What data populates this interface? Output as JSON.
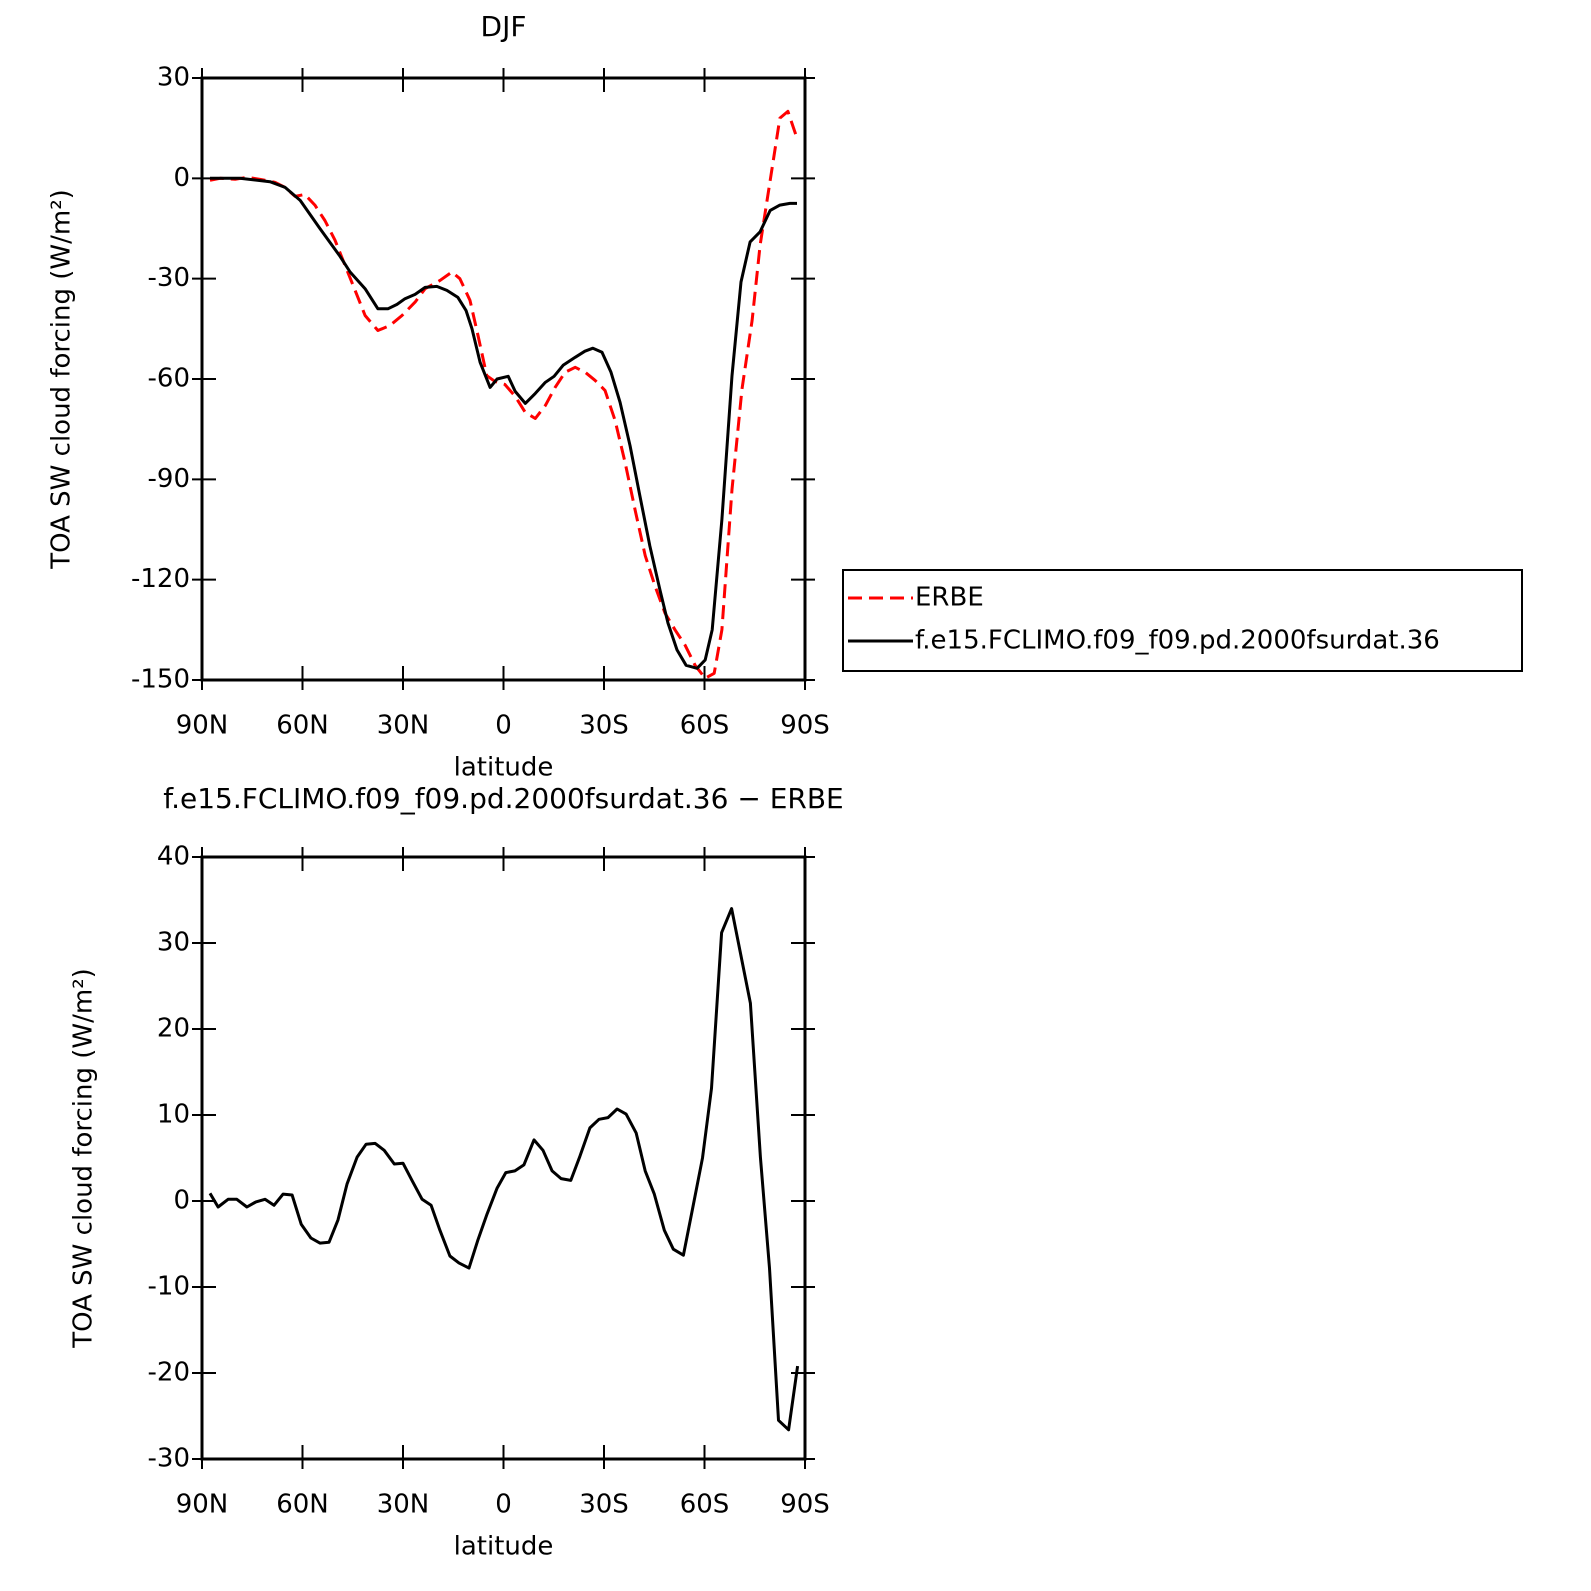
{
  "chart_data": [
    {
      "type": "line",
      "title": "DJF",
      "xlabel": "latitude",
      "ylabel": "TOA SW cloud forcing (W/m²)",
      "xlim": [
        90,
        -90
      ],
      "xticks": [
        {
          "value": 90,
          "label": "90N"
        },
        {
          "value": 60,
          "label": "60N"
        },
        {
          "value": 30,
          "label": "30N"
        },
        0,
        {
          "value": -30,
          "label": "30S"
        },
        {
          "value": -60,
          "label": "60S"
        },
        {
          "value": -90,
          "label": "90S"
        }
      ],
      "ylim": [
        -150,
        30
      ],
      "yticks": [
        30,
        0,
        -30,
        -60,
        -90,
        -120,
        -150
      ],
      "legend": "right",
      "series": [
        {
          "name": "ERBE",
          "color": "#ff0000",
          "style": "dashed",
          "x": [
            87.6,
            84.6,
            80.1,
            76.6,
            72.7,
            68.2,
            65.2,
            62.2,
            59.3,
            56.3,
            53.3,
            50.3,
            47.3,
            44.3,
            41.3,
            37.5,
            33.9,
            30.3,
            26.4,
            23.4,
            18.9,
            15.4,
            13,
            10,
            7.6,
            5,
            2.6,
            -0.4,
            -3.5,
            -6.5,
            -9.5,
            -12.5,
            -15.4,
            -18.4,
            -21.4,
            -24.4,
            -27.3,
            -30.3,
            -33.3,
            -36.3,
            -39.3,
            -42.3,
            -45.2,
            -48.2,
            -51.2,
            -54.2,
            -57.2,
            -60.2,
            -62.9,
            -65.2,
            -68.2,
            -71.2,
            -74.2,
            -76.6,
            -79.6,
            -82.5,
            -84.9,
            -87.6
          ],
          "values": [
            -0.6,
            0,
            -0.3,
            0.3,
            -0.3,
            -1.2,
            -2.7,
            -5.4,
            -4.8,
            -8,
            -12.6,
            -18.5,
            -26,
            -33.5,
            -41,
            -45.5,
            -44,
            -41,
            -37,
            -33,
            -30.5,
            -28,
            -30,
            -36.5,
            -47,
            -59,
            -60.7,
            -61.6,
            -65.2,
            -70,
            -71.8,
            -67.9,
            -62.5,
            -58,
            -56.5,
            -58,
            -60.4,
            -63.4,
            -72.4,
            -85,
            -99.3,
            -112.8,
            -121.8,
            -130,
            -135,
            -139.6,
            -145.6,
            -149.5,
            -148,
            -135,
            -93,
            -63,
            -42.5,
            -20,
            -0.6,
            18,
            20,
            12
          ]
        },
        {
          "name": "f.e15.FCLIMO.f09_f09.pd.2000fsurdat.36",
          "color": "#000000",
          "style": "solid",
          "x": [
            87.6,
            78.7,
            69.7,
            65.2,
            60.7,
            54.8,
            48.8,
            45.8,
            41.3,
            37.5,
            34.5,
            31.8,
            29.4,
            26.4,
            23.4,
            19.9,
            16.9,
            13.6,
            11.2,
            9.4,
            7,
            4,
            1.9,
            -1.4,
            -3.5,
            -6.5,
            -9.5,
            -12.5,
            -15.1,
            -17.8,
            -21.4,
            -24.3,
            -26.7,
            -29.4,
            -32.1,
            -34.8,
            -37.8,
            -40.7,
            -43.7,
            -46.7,
            -49.1,
            -51.8,
            -54.5,
            -57.8,
            -60.2,
            -62.3,
            -65.2,
            -68.2,
            -70.9,
            -73.6,
            -76.6,
            -79.6,
            -82.5,
            -85.5,
            -87.6
          ],
          "values": [
            0,
            0,
            -1,
            -2.7,
            -6.6,
            -15,
            -23.3,
            -28,
            -33,
            -39,
            -39,
            -37.7,
            -36,
            -34.7,
            -32.6,
            -32.3,
            -33.5,
            -35.6,
            -39.5,
            -45,
            -55,
            -62.5,
            -60,
            -59.2,
            -63.7,
            -67.3,
            -64.3,
            -61,
            -59.2,
            -55.9,
            -53.5,
            -51.7,
            -50.8,
            -52,
            -58,
            -67,
            -80,
            -94.8,
            -110,
            -123,
            -133,
            -141,
            -145.6,
            -146.5,
            -144,
            -135,
            -102,
            -59,
            -31,
            -19,
            -16,
            -9.6,
            -8,
            -7.5,
            -7.5
          ]
        }
      ]
    },
    {
      "type": "line",
      "title": "f.e15.FCLIMO.f09_f09.pd.2000fsurdat.36 − ERBE",
      "xlabel": "latitude",
      "ylabel": "TOA SW cloud forcing (W/m²)",
      "xlim": [
        90,
        -90
      ],
      "xticks": [
        {
          "value": 90,
          "label": "90N"
        },
        {
          "value": 60,
          "label": "60N"
        },
        {
          "value": 30,
          "label": "30N"
        },
        0,
        {
          "value": -30,
          "label": "30S"
        },
        {
          "value": -60,
          "label": "60S"
        },
        {
          "value": -90,
          "label": "90S"
        }
      ],
      "ylim": [
        -30,
        40
      ],
      "yticks": [
        40,
        30,
        20,
        10,
        0,
        -10,
        -20,
        -30
      ],
      "color": "#000000",
      "x": [
        87.6,
        85.2,
        82.2,
        79.6,
        76.6,
        73.9,
        71.2,
        68.5,
        65.8,
        63.1,
        60.4,
        57.5,
        54.8,
        52.1,
        49.4,
        46.7,
        43.7,
        41,
        38.3,
        35.6,
        32.6,
        30,
        27.3,
        24.3,
        21.6,
        19,
        16,
        13.3,
        10.3,
        7.6,
        4.9,
        1.9,
        -0.7,
        -3.4,
        -6.1,
        -9.1,
        -11.8,
        -14.5,
        -17.2,
        -20.1,
        -22.8,
        -25.8,
        -28.5,
        -31.2,
        -33.9,
        -36.6,
        -39.6,
        -42.3,
        -45,
        -48,
        -50.7,
        -53.7,
        -56.4,
        -59.4,
        -62.1,
        -65.1,
        -68.1,
        -73.7,
        -76.7,
        -79.4,
        -82.1,
        -85.1,
        -87.8
      ],
      "values": [
        0.9,
        -0.7,
        0.2,
        0.2,
        -0.7,
        -0.1,
        0.2,
        -0.5,
        0.8,
        0.7,
        -2.7,
        -4.3,
        -4.9,
        -4.8,
        -2.2,
        2,
        5.1,
        6.6,
        6.7,
        5.9,
        4.3,
        4.4,
        2.4,
        0.2,
        -0.5,
        -3.4,
        -6.4,
        -7.2,
        -7.8,
        -4.5,
        -1.5,
        1.5,
        3.3,
        3.5,
        4.2,
        7.1,
        5.9,
        3.5,
        2.6,
        2.4,
        5.2,
        8.5,
        9.5,
        9.7,
        10.7,
        10.1,
        7.9,
        3.5,
        0.8,
        -3.4,
        -5.6,
        -6.3,
        -1,
        5,
        13.1,
        31.2,
        34,
        23,
        5.1,
        -7.8,
        -25.5,
        -26.6,
        -19.2
      ]
    }
  ]
}
